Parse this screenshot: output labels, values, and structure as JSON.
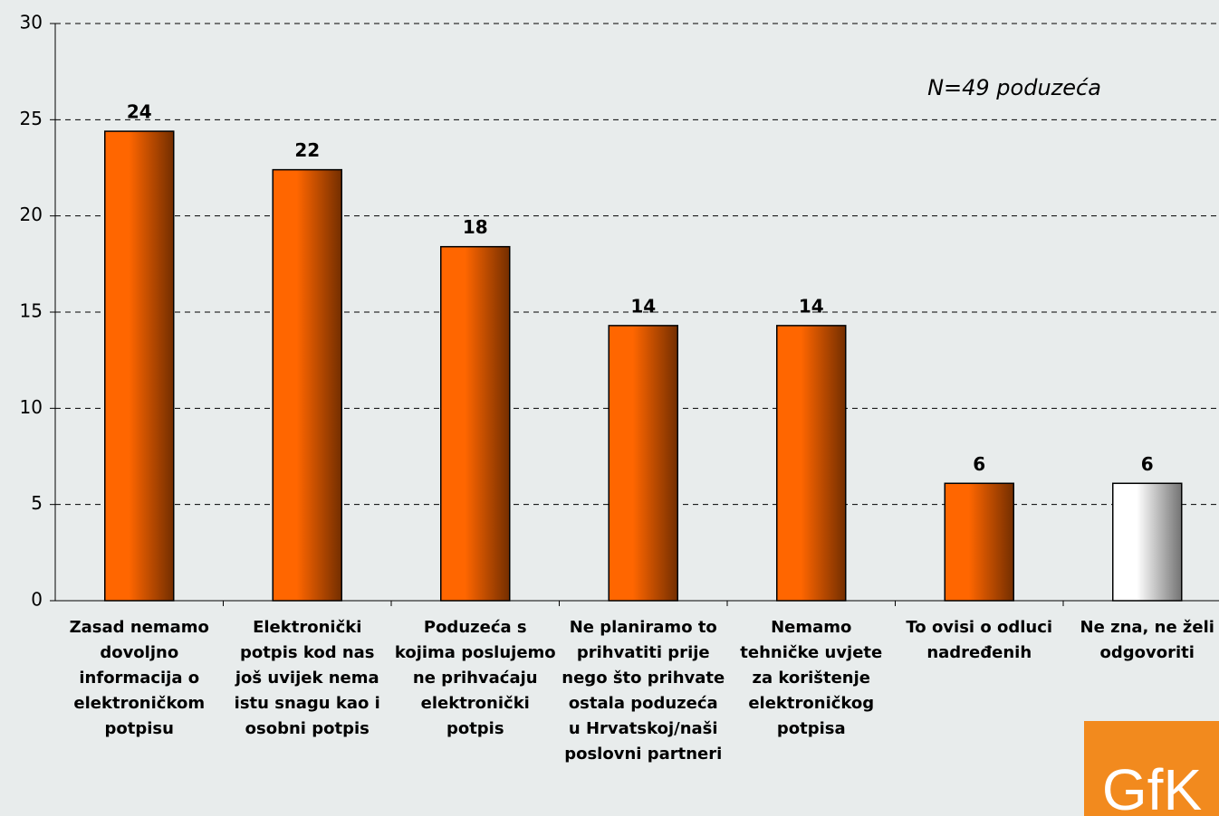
{
  "chart_data": {
    "type": "bar",
    "annotation": "N=49 poduzeća",
    "logo": "GfK",
    "categories": [
      "Zasad nemamo dovoljno informacija o elektroničkom potpisu",
      "Elektronički potpis kod nas još uvijek nema istu snagu kao i osobni potpis",
      "Poduzeća s kojima poslujemo ne prihvaćaju elektronički potpis",
      "Ne planiramo to prihvatiti prije nego što prihvate ostala poduzeća u Hrvatskoj/naši poslovni partneri",
      "Nemamo tehničke uvjete za korištenje elektroničkog potpisa",
      "To ovisi o odluci nadređenih",
      "Ne zna, ne želi odgovoriti"
    ],
    "values": [
      24.4,
      22.4,
      18.4,
      14.3,
      14.3,
      6.1,
      6.1
    ],
    "value_labels": [
      "24",
      "22",
      "18",
      "14",
      "14",
      "6",
      "6"
    ],
    "colors": [
      "#ff6600",
      "#ff6600",
      "#ff6600",
      "#ff6600",
      "#ff6600",
      "#ff6600",
      "#ffffff"
    ],
    "ylim": [
      0,
      30
    ],
    "yticks": [
      0,
      5,
      10,
      15,
      20,
      25,
      30
    ],
    "grid": true
  }
}
